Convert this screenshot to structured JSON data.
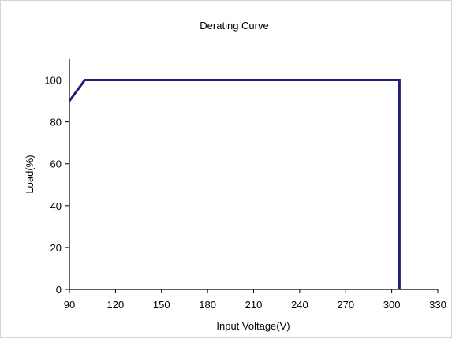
{
  "chart_data": {
    "type": "line",
    "title": "Derating Curve",
    "xlabel": "Input Voltage(V)",
    "ylabel": "Load(%)",
    "xlim": [
      90,
      330
    ],
    "ylim": [
      0,
      110
    ],
    "x_ticks": [
      90,
      120,
      150,
      180,
      210,
      240,
      270,
      300,
      330
    ],
    "y_ticks": [
      0,
      20,
      40,
      60,
      80,
      100
    ],
    "x_tick_labels": [
      "90",
      "120",
      "150",
      "180",
      "210",
      "240",
      "270",
      "300",
      "330"
    ],
    "y_tick_labels": [
      "0",
      "20",
      "40",
      "60",
      "80",
      "100"
    ],
    "grid": false,
    "legend": "none",
    "series": [
      {
        "color": "#1f1f7a",
        "points": [
          [
            90,
            90
          ],
          [
            100,
            100
          ],
          [
            305,
            100
          ],
          [
            305,
            0
          ]
        ]
      }
    ]
  }
}
